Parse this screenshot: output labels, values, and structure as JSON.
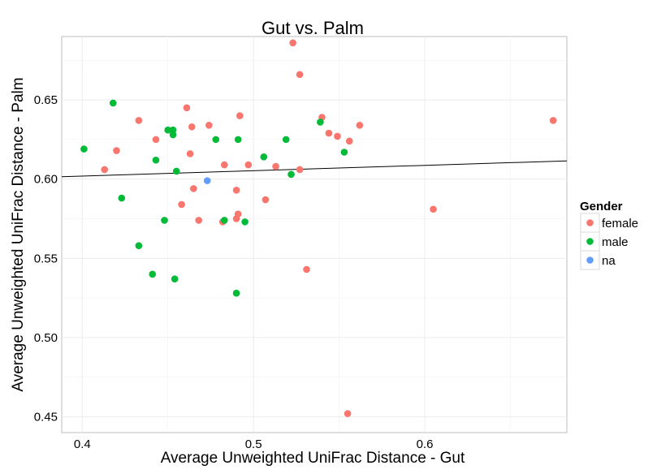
{
  "chart_data": {
    "type": "scatter",
    "title": "Gut vs. Palm",
    "xlabel": "Average Unweighted UniFrac Distance - Gut",
    "ylabel": "Average Unweighted UniFrac Distance - Palm",
    "xlim": [
      0.388,
      0.683
    ],
    "ylim": [
      0.44,
      0.69
    ],
    "x_ticks": [
      0.4,
      0.5,
      0.6
    ],
    "x_tick_labels": [
      "0.4",
      "0.5",
      "0.6"
    ],
    "y_ticks": [
      0.45,
      0.5,
      0.55,
      0.6,
      0.65
    ],
    "y_tick_labels": [
      "0.45",
      "0.50",
      "0.55",
      "0.60",
      "0.65"
    ],
    "grid": true,
    "legend": {
      "title": "Gender",
      "placement": "right",
      "entries": [
        {
          "name": "female",
          "color": "#F8766D"
        },
        {
          "name": "male",
          "color": "#00BA38"
        },
        {
          "name": "na",
          "color": "#619CFF"
        }
      ]
    },
    "series": [
      {
        "name": "female",
        "color": "#F8766D",
        "points": [
          [
            0.413,
            0.606
          ],
          [
            0.42,
            0.618
          ],
          [
            0.433,
            0.637
          ],
          [
            0.443,
            0.625
          ],
          [
            0.461,
            0.645
          ],
          [
            0.463,
            0.616
          ],
          [
            0.464,
            0.633
          ],
          [
            0.465,
            0.594
          ],
          [
            0.468,
            0.574
          ],
          [
            0.458,
            0.584
          ],
          [
            0.474,
            0.634
          ],
          [
            0.482,
            0.573
          ],
          [
            0.483,
            0.609
          ],
          [
            0.49,
            0.593
          ],
          [
            0.49,
            0.575
          ],
          [
            0.491,
            0.578
          ],
          [
            0.492,
            0.64
          ],
          [
            0.497,
            0.609
          ],
          [
            0.507,
            0.587
          ],
          [
            0.513,
            0.608
          ],
          [
            0.523,
            0.686
          ],
          [
            0.527,
            0.666
          ],
          [
            0.527,
            0.606
          ],
          [
            0.531,
            0.543
          ],
          [
            0.54,
            0.639
          ],
          [
            0.544,
            0.629
          ],
          [
            0.549,
            0.627
          ],
          [
            0.555,
            0.452
          ],
          [
            0.556,
            0.624
          ],
          [
            0.562,
            0.634
          ],
          [
            0.605,
            0.581
          ],
          [
            0.675,
            0.637
          ]
        ]
      },
      {
        "name": "male",
        "color": "#00BA38",
        "points": [
          [
            0.401,
            0.619
          ],
          [
            0.418,
            0.648
          ],
          [
            0.423,
            0.588
          ],
          [
            0.433,
            0.558
          ],
          [
            0.441,
            0.54
          ],
          [
            0.443,
            0.612
          ],
          [
            0.448,
            0.574
          ],
          [
            0.45,
            0.631
          ],
          [
            0.453,
            0.631
          ],
          [
            0.453,
            0.628
          ],
          [
            0.454,
            0.537
          ],
          [
            0.455,
            0.605
          ],
          [
            0.478,
            0.625
          ],
          [
            0.483,
            0.574
          ],
          [
            0.49,
            0.528
          ],
          [
            0.491,
            0.625
          ],
          [
            0.495,
            0.573
          ],
          [
            0.506,
            0.614
          ],
          [
            0.519,
            0.625
          ],
          [
            0.522,
            0.603
          ],
          [
            0.539,
            0.636
          ],
          [
            0.553,
            0.617
          ]
        ]
      },
      {
        "name": "na",
        "color": "#619CFF",
        "points": [
          [
            0.473,
            0.599
          ]
        ]
      }
    ],
    "trendline": {
      "type": "linear",
      "x": [
        0.388,
        0.683
      ],
      "y": [
        0.6015,
        0.6115
      ]
    }
  }
}
